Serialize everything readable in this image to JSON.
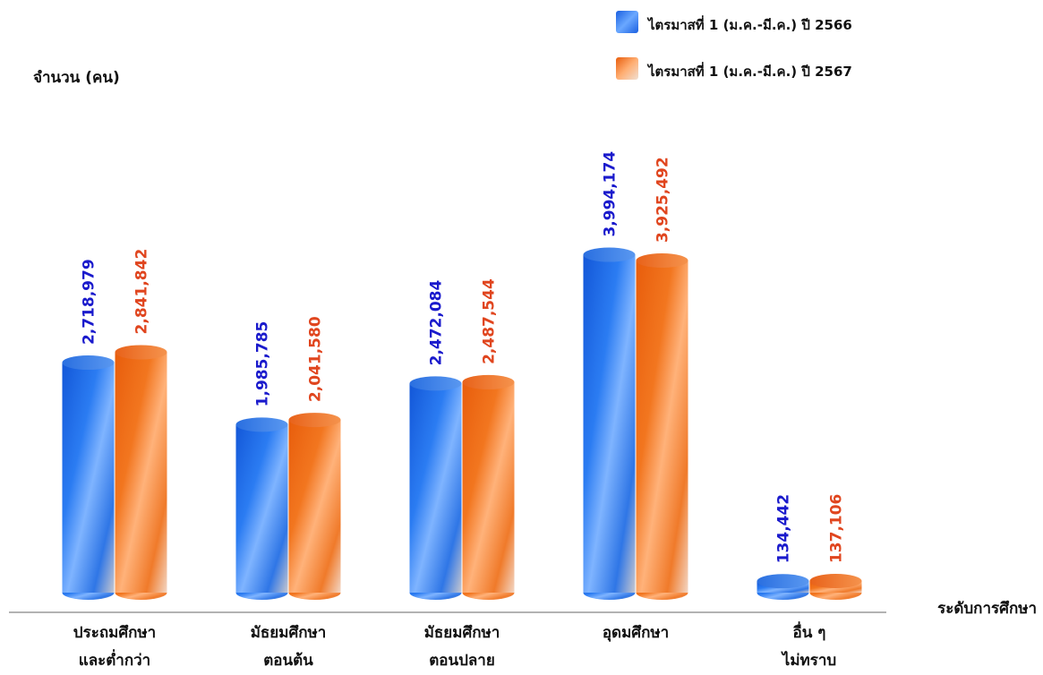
{
  "chart_data": {
    "type": "bar",
    "title": "",
    "ylabel": "จำนวน (คน)",
    "xlabel": "ระดับการศึกษา",
    "categories": [
      [
        "ประถมศึกษา",
        "และต่ำกว่า"
      ],
      [
        "มัธยมศึกษา",
        "ตอนต้น"
      ],
      [
        "มัธยมศึกษา",
        "ตอนปลาย"
      ],
      [
        "อุดมศึกษา"
      ],
      [
        "อื่น ๆ",
        "ไม่ทราบ"
      ]
    ],
    "series": [
      {
        "name": "ไตรมาสที่ 1 (ม.ค.-มี.ค.) ปี 2566",
        "values": [
          2718979,
          1985785,
          2472084,
          3994174,
          134442
        ],
        "labels": [
          "2,718,979",
          "1,985,785",
          "2,472,084",
          "3,994,174",
          "134,442"
        ],
        "color": "#1f6fe8",
        "label_color": "#1a1acc"
      },
      {
        "name": "ไตรมาสที่ 1 (ม.ค.-มี.ค.) ปี 2567",
        "values": [
          2841842,
          2041580,
          2487544,
          3925492,
          137106
        ],
        "labels": [
          "2,841,842",
          "2,041,580",
          "2,487,544",
          "3,925,492",
          "137,106"
        ],
        "color": "#f06a14",
        "label_color": "#e0451e"
      }
    ],
    "ylim": [
      0,
      4000000
    ],
    "grid": false,
    "legend_position": "top-right",
    "style": "3d-cylinder"
  }
}
